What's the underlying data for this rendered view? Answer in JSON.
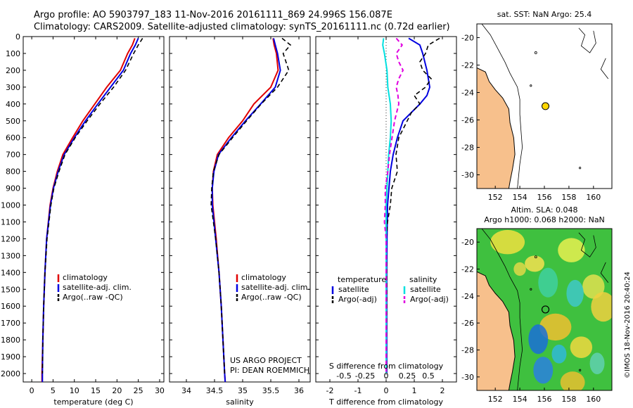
{
  "header": {
    "line1": "Argo profile: AO 5903797_183 11-Nov-2016 20161111_869 24.996S 156.087E",
    "line2": "Climatology: CARS2009. Satellite-adjusted climatology: synTS_20161111.nc (0.72d earlier)"
  },
  "credit": "©IMOS 18-Nov-2016 20:40:24",
  "project": {
    "line1": "US ARGO PROJECT",
    "line2": "PI: DEAN ROEMMICH"
  },
  "colors": {
    "climatology": "#e00000",
    "satellite": "#0000e0",
    "argo": "#000000",
    "sal_sat": "#00e0e0",
    "sal_argo": "#e000e0",
    "land": "#f7c08c"
  },
  "chart_data": [
    {
      "type": "line",
      "xlabel": "temperature (deg C)",
      "ylim": [
        2050,
        0
      ],
      "xlim": [
        -2,
        31
      ],
      "xticks": [
        0,
        5,
        10,
        15,
        20,
        25,
        30
      ],
      "yticks": [
        0,
        100,
        200,
        300,
        400,
        500,
        600,
        700,
        800,
        900,
        1000,
        1100,
        1200,
        1300,
        1400,
        1500,
        1600,
        1700,
        1800,
        1900,
        2000
      ],
      "legend": [
        "climatology",
        "satellite-adj. clim.",
        "Argo(..raw -QC)"
      ],
      "series": [
        {
          "name": "climatology",
          "depth": [
            10,
            50,
            100,
            200,
            300,
            400,
            500,
            600,
            700,
            800,
            900,
            1000,
            1200,
            1400,
            1600,
            1800,
            2000,
            2050
          ],
          "values": [
            24.2,
            23.6,
            22.5,
            20.8,
            17.6,
            14.8,
            12.0,
            9.6,
            7.3,
            6.0,
            5.0,
            4.3,
            3.5,
            3.1,
            2.8,
            2.6,
            2.4,
            2.4
          ]
        },
        {
          "name": "satellite-adj. clim.",
          "depth": [
            10,
            50,
            100,
            200,
            300,
            400,
            500,
            600,
            700,
            800,
            900,
            1000,
            1200,
            1400,
            1600,
            1800,
            2000,
            2050
          ],
          "values": [
            25.0,
            24.3,
            23.2,
            21.5,
            18.5,
            15.5,
            12.6,
            10.0,
            7.6,
            6.2,
            5.1,
            4.4,
            3.5,
            3.1,
            2.8,
            2.6,
            2.5,
            2.5
          ]
        },
        {
          "name": "Argo(..raw -QC)",
          "depth": [
            10,
            50,
            100,
            200,
            300,
            400,
            500,
            600,
            700,
            800,
            900,
            1000,
            1200,
            1400,
            1600,
            1800,
            2000
          ],
          "values": [
            26.0,
            25.0,
            23.9,
            22.0,
            19.2,
            16.0,
            13.0,
            10.2,
            7.8,
            6.4,
            5.2,
            4.5,
            3.6,
            3.1,
            2.8,
            2.6,
            2.5
          ]
        }
      ]
    },
    {
      "type": "line",
      "xlabel": "salinity",
      "ylim": [
        2050,
        0
      ],
      "xlim": [
        33.7,
        36.2
      ],
      "xticks": [
        34,
        34.5,
        35,
        35.5,
        36
      ],
      "xticklabels": [
        "34",
        "34.5",
        "35",
        "35.5",
        "36"
      ],
      "legend": [
        "climatology",
        "satellite-adj. clim.",
        "Argo(..raw -QC)"
      ],
      "series": [
        {
          "name": "climatology",
          "depth": [
            10,
            50,
            100,
            200,
            300,
            400,
            500,
            600,
            700,
            800,
            900,
            1000,
            1200,
            1400,
            1600,
            1800,
            2000,
            2050
          ],
          "values": [
            35.54,
            35.56,
            35.6,
            35.63,
            35.5,
            35.2,
            35.0,
            34.75,
            34.55,
            34.48,
            34.46,
            34.47,
            34.53,
            34.58,
            34.62,
            34.65,
            34.68,
            34.69
          ]
        },
        {
          "name": "satellite-adj. clim.",
          "depth": [
            10,
            50,
            100,
            200,
            300,
            400,
            500,
            600,
            700,
            800,
            900,
            1000,
            1200,
            1400,
            1600,
            1800,
            2000,
            2050
          ],
          "values": [
            35.55,
            35.58,
            35.62,
            35.67,
            35.58,
            35.32,
            35.05,
            34.8,
            34.57,
            34.49,
            34.46,
            34.46,
            34.52,
            34.58,
            34.62,
            34.65,
            34.68,
            34.69
          ]
        },
        {
          "name": "Argo(..raw -QC)",
          "depth": [
            10,
            50,
            100,
            200,
            300,
            400,
            500,
            600,
            700,
            800,
            900,
            1000,
            1200,
            1400,
            1600,
            1800,
            2000
          ],
          "values": [
            35.7,
            35.85,
            35.72,
            35.82,
            35.62,
            35.33,
            35.07,
            34.82,
            34.58,
            34.48,
            34.45,
            34.44,
            34.52,
            34.58,
            34.62,
            34.65,
            34.68
          ]
        }
      ]
    },
    {
      "type": "line",
      "xlabel": "T difference from climatology",
      "x2label": "S difference from climatology",
      "ylim": [
        2050,
        0
      ],
      "xlim": [
        -2.5,
        2.5
      ],
      "xticks": [
        -2,
        -1,
        0,
        1,
        2
      ],
      "x2ticks": [
        -0.5,
        -0.25,
        0,
        0.25,
        0.5
      ],
      "x2ticklabels": [
        "-0.5",
        "-0.25",
        "0",
        "0.25",
        "0.5"
      ],
      "legend_groups": [
        {
          "title": "temperature",
          "items": [
            "satellite",
            "Argo(-adj)"
          ]
        },
        {
          "title": "salinity",
          "items": [
            "satellite",
            "Argo(-adj)"
          ]
        }
      ],
      "series": [
        {
          "name": "satellite",
          "group": "temperature",
          "depth": [
            10,
            50,
            100,
            200,
            300,
            350,
            400,
            500,
            600,
            700,
            800,
            900,
            1000,
            1200,
            1400,
            1600,
            1800,
            2000
          ],
          "values": [
            0.8,
            1.2,
            1.3,
            1.45,
            1.55,
            1.45,
            1.2,
            0.6,
            0.4,
            0.25,
            0.15,
            0.1,
            0.05,
            0.03,
            0.02,
            0.02,
            0.02,
            0.02
          ]
        },
        {
          "name": "Argo(-adj)",
          "group": "temperature",
          "depth": [
            10,
            50,
            100,
            150,
            200,
            250,
            300,
            350,
            400,
            450,
            500,
            550,
            600,
            700,
            800,
            900,
            1000,
            1100,
            1200,
            1400,
            1600,
            1800,
            2000
          ],
          "values": [
            1.9,
            1.5,
            1.4,
            1.2,
            1.3,
            1.6,
            1.4,
            1.0,
            1.2,
            0.9,
            0.75,
            0.6,
            0.45,
            0.35,
            0.4,
            0.2,
            0.15,
            0.05,
            0.0,
            0.02,
            0.02,
            0.01,
            0.01
          ]
        },
        {
          "name": "satellite",
          "group": "salinity",
          "depth": [
            10,
            50,
            100,
            200,
            300,
            400,
            500,
            600,
            700,
            800,
            900,
            1000,
            1200,
            1400,
            1600,
            1800,
            2000
          ],
          "values": [
            -0.03,
            -0.04,
            -0.02,
            0.01,
            0.02,
            0.05,
            0.06,
            0.05,
            0.03,
            0.02,
            0.01,
            0.0,
            0.0,
            0.0,
            0.0,
            0.0,
            0.0
          ]
        },
        {
          "name": "Argo(-adj)",
          "group": "salinity",
          "depth": [
            10,
            50,
            100,
            150,
            200,
            250,
            300,
            350,
            400,
            500,
            600,
            700,
            800,
            900,
            1000,
            1100,
            1200,
            1400,
            1600,
            1800,
            2000
          ],
          "values": [
            0.12,
            0.19,
            0.12,
            0.15,
            0.2,
            0.15,
            0.12,
            0.14,
            0.15,
            0.1,
            0.07,
            0.04,
            0.02,
            -0.01,
            -0.01,
            -0.02,
            0.0,
            0.0,
            0.0,
            0.0,
            0.0
          ]
        }
      ]
    },
    {
      "type": "scatter",
      "title": "sat. SST: NaN  Argo: 25.4",
      "xlim": [
        150.5,
        161.5
      ],
      "ylim": [
        -31,
        -19
      ],
      "xticks": [
        152,
        154,
        156,
        158,
        160
      ],
      "yticks": [
        -20,
        -22,
        -24,
        -26,
        -28,
        -30
      ],
      "marker": {
        "lon": 156.087,
        "lat": -24.996,
        "color": "#ffd700"
      }
    },
    {
      "type": "heatmap",
      "title_line1": "Altim. SLA: 0.048",
      "title_line2": "Argo h1000: 0.068 h2000: NaN",
      "xlim": [
        150.5,
        161.5
      ],
      "ylim": [
        -31,
        -19
      ],
      "xticks": [
        152,
        154,
        156,
        158,
        160
      ],
      "yticks": [
        -20,
        -22,
        -24,
        -26,
        -28,
        -30
      ],
      "marker": {
        "lon": 156.087,
        "lat": -24.996
      }
    }
  ]
}
